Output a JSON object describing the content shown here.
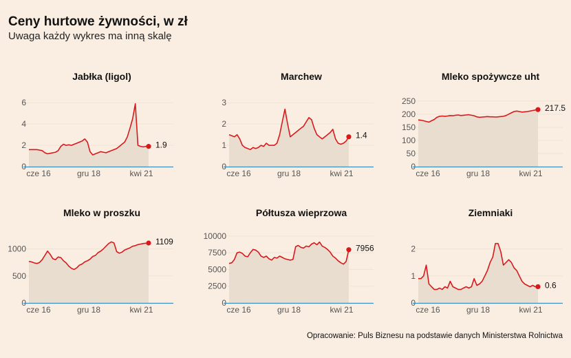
{
  "header": {
    "title": "Ceny hurtowe żywności, w zł",
    "subtitle": "Uwaga każdy wykres ma inną skalę"
  },
  "footer": {
    "source": "Opracowanie: Puls Biznesu na podstawie danych Ministerstwa Rolnictwa"
  },
  "colors": {
    "background": "#faeee2",
    "line": "#d7191c",
    "area": "#e9ddd0",
    "axis": "#3a8fbf",
    "grid": "#efe3d6"
  },
  "chart_data": [
    {
      "type": "area",
      "title": "Jabłka (ligol)",
      "x_tick_labels": [
        "cze 16",
        "gru 18",
        "kwi 21"
      ],
      "x_tick_positions": [
        0.0,
        0.5,
        0.94
      ],
      "y_ticks": [
        0,
        2,
        4,
        6
      ],
      "ylim": [
        0,
        6.4
      ],
      "last_label": "1.9",
      "y": [
        1.6,
        1.6,
        1.6,
        1.6,
        1.55,
        1.5,
        1.3,
        1.2,
        1.25,
        1.3,
        1.35,
        1.5,
        1.9,
        2.1,
        2.0,
        2.05,
        2.0,
        2.1,
        2.2,
        2.3,
        2.4,
        2.6,
        2.3,
        1.4,
        1.1,
        1.2,
        1.3,
        1.4,
        1.35,
        1.3,
        1.4,
        1.5,
        1.6,
        1.7,
        1.9,
        2.1,
        2.3,
        2.8,
        3.6,
        4.5,
        5.9,
        2.0,
        1.9,
        1.85,
        1.9,
        1.9
      ]
    },
    {
      "type": "area",
      "title": "Marchew",
      "x_tick_labels": [
        "cze 16",
        "gru 18",
        "kwi 21"
      ],
      "x_tick_positions": [
        0.0,
        0.5,
        0.94
      ],
      "y_ticks": [
        0,
        1,
        2,
        3
      ],
      "ylim": [
        0,
        3.2
      ],
      "last_label": "1.4",
      "y": [
        1.5,
        1.45,
        1.4,
        1.5,
        1.3,
        1.0,
        0.9,
        0.85,
        0.8,
        0.9,
        0.85,
        0.9,
        1.0,
        0.95,
        1.1,
        1.0,
        1.0,
        1.0,
        1.1,
        1.5,
        2.1,
        2.7,
        2.0,
        1.4,
        1.5,
        1.6,
        1.7,
        1.8,
        1.9,
        2.1,
        2.3,
        2.2,
        1.8,
        1.5,
        1.4,
        1.3,
        1.4,
        1.5,
        1.6,
        1.75,
        1.3,
        1.1,
        1.05,
        1.1,
        1.2,
        1.4
      ]
    },
    {
      "type": "area",
      "title": "Mleko spożywcze uht",
      "x_tick_labels": [
        "cze 16",
        "gru 18",
        "kwi 21"
      ],
      "x_tick_positions": [
        0.0,
        0.5,
        0.94
      ],
      "y_ticks": [
        0,
        50,
        100,
        150,
        200,
        250
      ],
      "ylim": [
        0,
        260
      ],
      "last_label": "217.5",
      "y": [
        178,
        177,
        175,
        172,
        170,
        175,
        180,
        188,
        192,
        193,
        192,
        193,
        195,
        194,
        196,
        197,
        195,
        196,
        197,
        198,
        196,
        194,
        190,
        188,
        189,
        190,
        191,
        190,
        190,
        189,
        190,
        191,
        192,
        195,
        200,
        205,
        210,
        212,
        210,
        208,
        209,
        210,
        212,
        214,
        216,
        217.5
      ]
    },
    {
      "type": "area",
      "title": "Mleko w proszku",
      "x_tick_labels": [
        "cze 16",
        "gru 18",
        "kwi 21"
      ],
      "x_tick_positions": [
        0.0,
        0.5,
        0.94
      ],
      "y_ticks": [
        0,
        500,
        1000
      ],
      "ylim": [
        0,
        1300
      ],
      "last_label": "1109",
      "y": [
        770,
        760,
        740,
        730,
        750,
        800,
        880,
        960,
        900,
        820,
        800,
        850,
        840,
        780,
        740,
        680,
        640,
        620,
        650,
        700,
        720,
        760,
        780,
        810,
        860,
        880,
        930,
        960,
        1000,
        1050,
        1100,
        1130,
        1110,
        950,
        920,
        940,
        980,
        1000,
        1020,
        1050,
        1060,
        1080,
        1090,
        1100,
        1105,
        1109
      ]
    },
    {
      "type": "area",
      "title": "Półtusza wieprzowa",
      "x_tick_labels": [
        "cze 16",
        "gru 18",
        "kwi 21"
      ],
      "x_tick_positions": [
        0.0,
        0.5,
        0.94
      ],
      "y_ticks": [
        0,
        2500,
        5000,
        7500,
        10000
      ],
      "ylim": [
        0,
        10500
      ],
      "last_label": "7956",
      "y": [
        5900,
        6000,
        6500,
        7500,
        7600,
        7400,
        7000,
        6900,
        7500,
        8000,
        7900,
        7600,
        7000,
        6800,
        7000,
        6600,
        6400,
        6800,
        6700,
        7000,
        6800,
        6600,
        6500,
        6400,
        6500,
        8400,
        8600,
        8300,
        8200,
        8500,
        8400,
        8800,
        9000,
        8700,
        9100,
        8500,
        8300,
        8000,
        7600,
        7000,
        6700,
        6300,
        6000,
        5800,
        6200,
        7956
      ]
    },
    {
      "type": "area",
      "title": "Ziemniaki",
      "x_tick_labels": [
        "cze 16",
        "gru 18",
        "kwi 21"
      ],
      "x_tick_positions": [
        0.0,
        0.5,
        0.94
      ],
      "y_ticks": [
        0,
        1,
        2
      ],
      "ylim": [
        0,
        2.6
      ],
      "last_label": "0.6",
      "y": [
        0.9,
        0.9,
        1.0,
        1.4,
        0.7,
        0.6,
        0.5,
        0.5,
        0.55,
        0.5,
        0.6,
        0.55,
        0.8,
        0.6,
        0.55,
        0.5,
        0.5,
        0.55,
        0.6,
        0.55,
        0.6,
        0.9,
        0.65,
        0.7,
        0.8,
        1.0,
        1.2,
        1.5,
        1.7,
        2.2,
        2.2,
        1.9,
        1.4,
        1.5,
        1.6,
        1.5,
        1.3,
        1.2,
        1.0,
        0.8,
        0.7,
        0.65,
        0.6,
        0.65,
        0.6,
        0.6
      ]
    }
  ]
}
